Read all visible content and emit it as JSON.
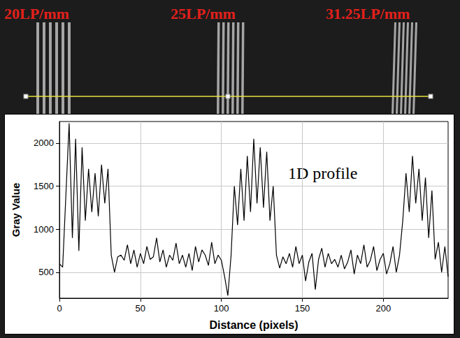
{
  "image": {
    "labels": [
      "20LP/mm",
      "25LP/mm",
      "31.25LP/mm"
    ]
  },
  "chart_data": {
    "type": "line",
    "annotations": [
      "1D profile"
    ],
    "x_label": "Distance (pixels)",
    "y_label": "Gray Value",
    "x": [
      0,
      2,
      4,
      6,
      8,
      10,
      12,
      14,
      16,
      18,
      20,
      22,
      24,
      26,
      28,
      30,
      32,
      34,
      36,
      38,
      40,
      42,
      44,
      46,
      48,
      50,
      52,
      54,
      56,
      58,
      60,
      62,
      64,
      66,
      68,
      70,
      72,
      74,
      76,
      78,
      80,
      82,
      84,
      86,
      88,
      90,
      92,
      94,
      96,
      98,
      100,
      102,
      104,
      106,
      108,
      110,
      112,
      114,
      116,
      118,
      120,
      122,
      124,
      126,
      128,
      130,
      132,
      134,
      136,
      138,
      140,
      142,
      144,
      146,
      148,
      150,
      152,
      154,
      156,
      158,
      160,
      162,
      164,
      166,
      168,
      170,
      172,
      174,
      176,
      178,
      180,
      182,
      184,
      186,
      188,
      190,
      192,
      194,
      196,
      198,
      200,
      202,
      204,
      206,
      208,
      210,
      212,
      214,
      216,
      218,
      220,
      222,
      224,
      226,
      228,
      230,
      232,
      234,
      236,
      238,
      240
    ],
    "values": [
      600,
      560,
      1400,
      2230,
      900,
      2050,
      750,
      1950,
      1100,
      1700,
      1200,
      1650,
      1150,
      1750,
      1300,
      1700,
      700,
      500,
      680,
      700,
      640,
      820,
      600,
      760,
      560,
      720,
      600,
      800,
      650,
      680,
      900,
      620,
      760,
      560,
      700,
      640,
      840,
      600,
      700,
      560,
      720,
      520,
      800,
      620,
      760,
      700,
      580,
      850,
      600,
      700,
      640,
      450,
      230,
      700,
      1500,
      1050,
      1700,
      1100,
      1850,
      1200,
      2050,
      1300,
      1950,
      1250,
      1900,
      1100,
      1500,
      700,
      550,
      680,
      600,
      720,
      560,
      800,
      600,
      700,
      400,
      620,
      720,
      300,
      650,
      780,
      560,
      720,
      600,
      650,
      560,
      700,
      540,
      620,
      760,
      480,
      700,
      600,
      820,
      560,
      640,
      800,
      520,
      650,
      720,
      480,
      600,
      800,
      500,
      700,
      1100,
      1650,
      1200,
      1850,
      1300,
      1700,
      1100,
      1600,
      900,
      1450,
      650,
      850,
      500,
      800,
      450
    ],
    "color": "#000000",
    "xlim": [
      0,
      240
    ],
    "xticks": [
      0,
      50,
      100,
      150,
      200
    ],
    "ylim": [
      200,
      2250
    ],
    "yticks": [
      500,
      1000,
      1500,
      2000
    ],
    "grid": true
  }
}
